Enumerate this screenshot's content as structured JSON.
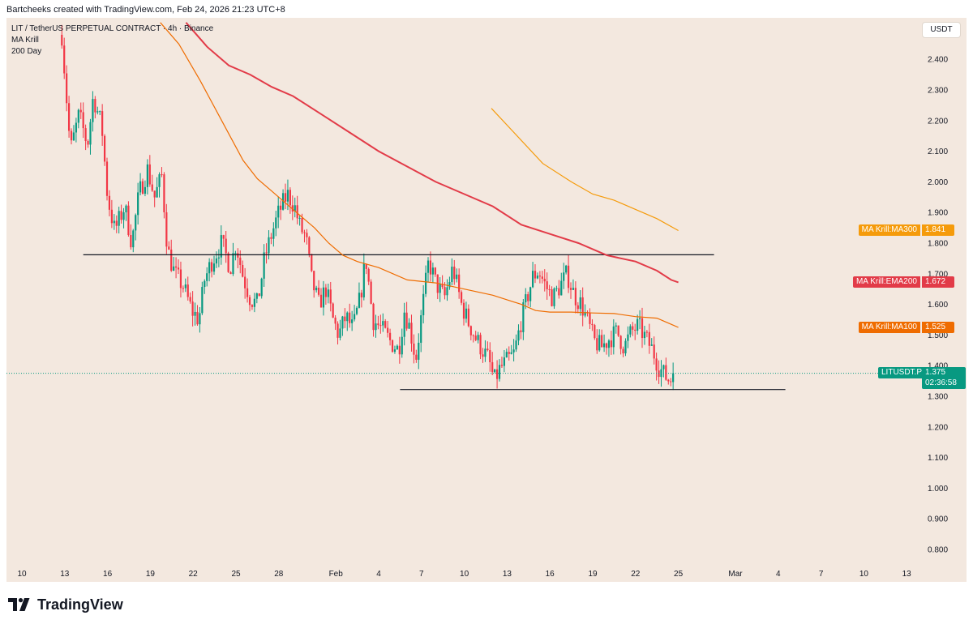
{
  "header": {
    "attribution": "Bartcheeks created with TradingView.com, Feb 24, 2026 21:23 UTC+8"
  },
  "legend": {
    "symbol_line": "LIT / TetherUS PERPETUAL CONTRACT · 4h · Binance",
    "indicator_name": "MA Krill",
    "indicator_param": "200 Day"
  },
  "currency": "USDT",
  "brand": {
    "name": "TradingView"
  },
  "indicators": [
    {
      "label": "MA Krill:MA300",
      "value": "1.841",
      "color": "#f59b0b"
    },
    {
      "label": "MA Krill:EMA200",
      "value": "1.672",
      "color": "#e23b48"
    },
    {
      "label": "MA Krill:MA100",
      "value": "1.525",
      "color": "#ef6c00"
    }
  ],
  "last_price": {
    "symbol": "LITUSDT.P",
    "price": "1.375",
    "countdown": "02:36:58",
    "color": "#089981"
  },
  "colors": {
    "up": "#089981",
    "down": "#f23645",
    "background": "#f3e8df"
  },
  "chart_data": {
    "type": "candlestick",
    "title": "LIT / TetherUS PERPETUAL CONTRACT · 4h · Binance",
    "ylim": [
      0.75,
      2.55
    ],
    "y_ticks": [
      "0.800",
      "0.900",
      "1.000",
      "1.100",
      "1.200",
      "1.300",
      "1.400",
      "1.500",
      "1.600",
      "1.700",
      "1.800",
      "1.900",
      "2.000",
      "2.100",
      "2.200",
      "2.300",
      "2.400"
    ],
    "x_ticks": [
      "10",
      "13",
      "16",
      "19",
      "22",
      "25",
      "28",
      "Feb",
      "4",
      "7",
      "10",
      "13",
      "16",
      "19",
      "22",
      "25",
      "Mar",
      "4",
      "7",
      "10",
      "13"
    ],
    "x_tick_days": [
      0,
      3,
      6,
      9,
      12,
      15,
      18,
      22,
      25,
      28,
      31,
      34,
      37,
      40,
      43,
      46,
      50,
      53,
      56,
      59,
      62
    ],
    "horizontal_lines": [
      {
        "price": 1.762,
        "from_day": 4.3,
        "to_day": 48.5
      },
      {
        "price": 1.322,
        "from_day": 26.5,
        "to_day": 53.5
      }
    ],
    "close_path": [
      [
        2.8,
        2.48
      ],
      [
        3.4,
        2.1
      ],
      [
        4.0,
        2.22
      ],
      [
        4.6,
        2.12
      ],
      [
        5.0,
        2.28
      ],
      [
        5.6,
        2.18
      ],
      [
        6.0,
        1.95
      ],
      [
        6.5,
        1.84
      ],
      [
        7.2,
        1.92
      ],
      [
        7.7,
        1.8
      ],
      [
        8.2,
        1.96
      ],
      [
        8.8,
        2.04
      ],
      [
        9.3,
        1.95
      ],
      [
        9.8,
        2.02
      ],
      [
        10.2,
        1.78
      ],
      [
        10.7,
        1.7
      ],
      [
        11.3,
        1.66
      ],
      [
        11.9,
        1.58
      ],
      [
        12.4,
        1.55
      ],
      [
        12.8,
        1.68
      ],
      [
        13.3,
        1.74
      ],
      [
        14.0,
        1.8
      ],
      [
        14.6,
        1.72
      ],
      [
        15.0,
        1.8
      ],
      [
        15.5,
        1.69
      ],
      [
        16.0,
        1.62
      ],
      [
        16.5,
        1.6
      ],
      [
        17.0,
        1.75
      ],
      [
        17.5,
        1.83
      ],
      [
        18.0,
        1.9
      ],
      [
        18.6,
        1.96
      ],
      [
        19.1,
        1.92
      ],
      [
        19.5,
        1.85
      ],
      [
        19.9,
        1.82
      ],
      [
        20.3,
        1.68
      ],
      [
        20.8,
        1.6
      ],
      [
        21.3,
        1.65
      ],
      [
        21.8,
        1.55
      ],
      [
        22.2,
        1.5
      ],
      [
        22.7,
        1.56
      ],
      [
        23.2,
        1.52
      ],
      [
        23.7,
        1.62
      ],
      [
        24.1,
        1.75
      ],
      [
        24.6,
        1.55
      ],
      [
        25.2,
        1.52
      ],
      [
        25.8,
        1.48
      ],
      [
        26.4,
        1.45
      ],
      [
        26.8,
        1.58
      ],
      [
        27.2,
        1.52
      ],
      [
        27.6,
        1.42
      ],
      [
        28.1,
        1.6
      ],
      [
        28.5,
        1.74
      ],
      [
        29.0,
        1.67
      ],
      [
        29.6,
        1.62
      ],
      [
        30.2,
        1.72
      ],
      [
        30.8,
        1.6
      ],
      [
        31.3,
        1.54
      ],
      [
        31.8,
        1.49
      ],
      [
        32.3,
        1.45
      ],
      [
        32.7,
        1.42
      ],
      [
        33.1,
        1.35
      ],
      [
        33.5,
        1.39
      ],
      [
        33.9,
        1.41
      ],
      [
        34.5,
        1.44
      ],
      [
        35.0,
        1.55
      ],
      [
        35.4,
        1.62
      ],
      [
        35.8,
        1.69
      ],
      [
        36.2,
        1.71
      ],
      [
        36.7,
        1.66
      ],
      [
        37.2,
        1.62
      ],
      [
        37.7,
        1.66
      ],
      [
        38.2,
        1.7
      ],
      [
        38.7,
        1.63
      ],
      [
        39.2,
        1.6
      ],
      [
        39.6,
        1.55
      ],
      [
        40.1,
        1.48
      ],
      [
        40.6,
        1.46
      ],
      [
        41.2,
        1.49
      ],
      [
        41.7,
        1.51
      ],
      [
        42.2,
        1.46
      ],
      [
        42.7,
        1.51
      ],
      [
        43.2,
        1.53
      ],
      [
        43.7,
        1.49
      ],
      [
        44.2,
        1.45
      ],
      [
        44.6,
        1.4
      ],
      [
        45.0,
        1.37
      ],
      [
        45.4,
        1.35
      ],
      [
        45.7,
        1.375
      ]
    ],
    "series": [
      {
        "name": "MA Krill:EMA200",
        "color": "#e23b48",
        "points": [
          [
            11.5,
            2.52
          ],
          [
            13.0,
            2.44
          ],
          [
            14.5,
            2.38
          ],
          [
            16.0,
            2.35
          ],
          [
            17.5,
            2.31
          ],
          [
            19.0,
            2.28
          ],
          [
            21.0,
            2.22
          ],
          [
            23.0,
            2.16
          ],
          [
            25.0,
            2.1
          ],
          [
            27.0,
            2.05
          ],
          [
            29.0,
            2.0
          ],
          [
            31.0,
            1.96
          ],
          [
            33.0,
            1.92
          ],
          [
            35.0,
            1.86
          ],
          [
            37.0,
            1.83
          ],
          [
            39.0,
            1.8
          ],
          [
            41.0,
            1.76
          ],
          [
            43.0,
            1.74
          ],
          [
            44.5,
            1.71
          ],
          [
            45.5,
            1.68
          ],
          [
            46.0,
            1.672
          ]
        ]
      },
      {
        "name": "MA Krill:MA100",
        "color": "#ef6c00",
        "points": [
          [
            9.7,
            2.52
          ],
          [
            11.0,
            2.45
          ],
          [
            12.5,
            2.33
          ],
          [
            14.0,
            2.2
          ],
          [
            15.5,
            2.07
          ],
          [
            16.5,
            2.01
          ],
          [
            17.5,
            1.97
          ],
          [
            18.5,
            1.93
          ],
          [
            19.5,
            1.89
          ],
          [
            20.5,
            1.85
          ],
          [
            21.5,
            1.8
          ],
          [
            22.5,
            1.76
          ],
          [
            23.5,
            1.74
          ],
          [
            25.0,
            1.72
          ],
          [
            27.0,
            1.68
          ],
          [
            29.0,
            1.67
          ],
          [
            31.0,
            1.65
          ],
          [
            33.0,
            1.63
          ],
          [
            35.0,
            1.6
          ],
          [
            36.0,
            1.58
          ],
          [
            37.0,
            1.575
          ],
          [
            38.5,
            1.575
          ],
          [
            40.0,
            1.572
          ],
          [
            41.5,
            1.57
          ],
          [
            43.0,
            1.56
          ],
          [
            44.5,
            1.555
          ],
          [
            45.5,
            1.535
          ],
          [
            46.0,
            1.525
          ]
        ]
      },
      {
        "name": "MA Krill:MA300",
        "color": "#f59b0b",
        "points": [
          [
            32.9,
            2.24
          ],
          [
            34.5,
            2.16
          ],
          [
            36.5,
            2.06
          ],
          [
            38.5,
            2.0
          ],
          [
            40.0,
            1.96
          ],
          [
            41.5,
            1.94
          ],
          [
            43.0,
            1.91
          ],
          [
            44.5,
            1.88
          ],
          [
            46.0,
            1.841
          ]
        ]
      }
    ]
  }
}
